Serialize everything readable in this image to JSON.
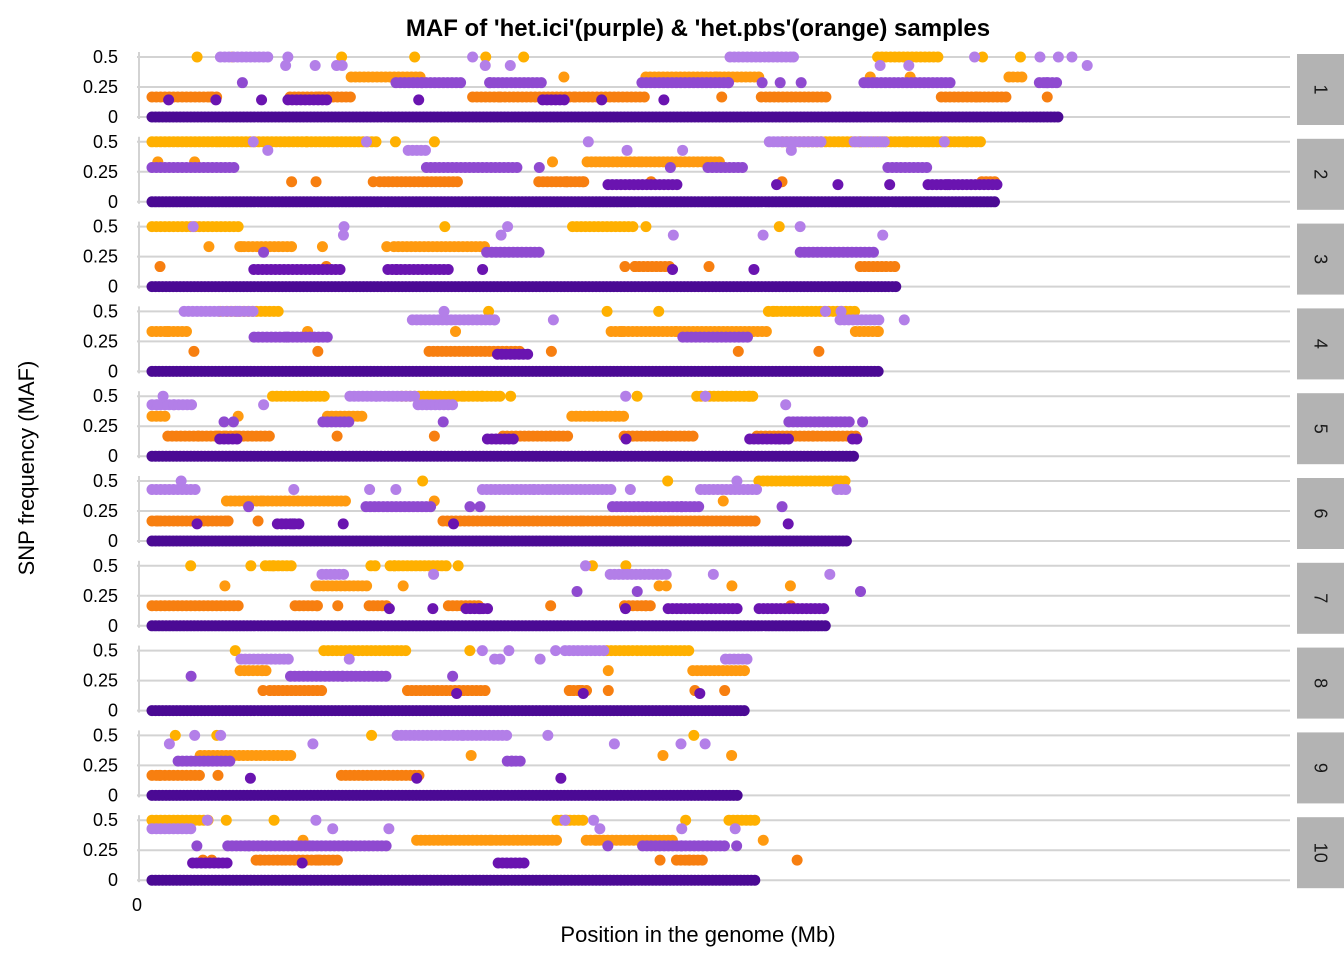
{
  "chart_data": {
    "type": "scatter",
    "title": "MAF of 'het.ici'(purple) & 'het.pbs'(orange) samples",
    "xlabel": "Position in the genome (Mb)",
    "ylabel": "SNP frequency (MAF)",
    "x_tick_labels": [
      "0"
    ],
    "y_tick_labels": [
      "0",
      "0.25",
      "0.5"
    ],
    "y_ticks": [
      0,
      0.25,
      0.5
    ],
    "ylim": [
      0,
      0.5
    ],
    "xlim": [
      0,
      120
    ],
    "grid": true,
    "legend": "none",
    "facet_labels": [
      "1",
      "2",
      "3",
      "4",
      "5",
      "6",
      "7",
      "8",
      "9",
      "10"
    ],
    "colors": {
      "ici_high": "#b37fe8",
      "ici_mid": "#8f4ad0",
      "ici_low": "#6a14b0",
      "ici_zero": "#4b0a94",
      "pbs_high": "#ffb000",
      "pbs_mid": "#ff9a10",
      "pbs_low": "#f77f10",
      "grid": "#d3d3d3",
      "strip": "#b3b3b3"
    },
    "chromosomes": [
      {
        "label": "1",
        "length": 116
      },
      {
        "label": "2",
        "length": 108
      },
      {
        "label": "3",
        "length": 95
      },
      {
        "label": "4",
        "length": 93
      },
      {
        "label": "5",
        "length": 90
      },
      {
        "label": "6",
        "length": 89
      },
      {
        "label": "7",
        "length": 86
      },
      {
        "label": "8",
        "length": 76
      },
      {
        "label": "9",
        "length": 75
      },
      {
        "label": "10",
        "length": 77
      }
    ],
    "series": [
      {
        "name": "het.ici",
        "levels": [
          0,
          0.143,
          0.286,
          0.429,
          0.5
        ]
      },
      {
        "name": "het.pbs",
        "levels": [
          0.167,
          0.333,
          0.5
        ]
      }
    ]
  }
}
